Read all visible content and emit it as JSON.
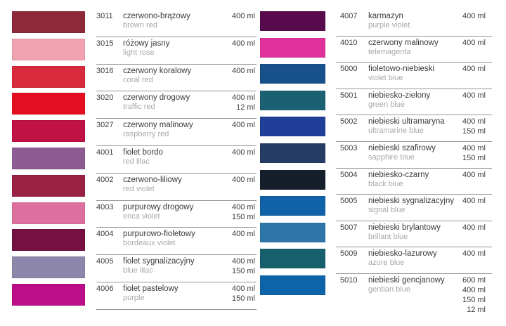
{
  "page": {
    "background": "#ffffff",
    "separator_color": "#949494",
    "code_color": "#3d3d3d",
    "name_pl_color": "#3a3a3a",
    "name_en_color": "#a9a9a9",
    "volume_color": "#3d3d3d"
  },
  "catalog": {
    "columns": [
      {
        "side": "left",
        "rows": [
          {
            "code": "3011",
            "name_pl": "czerwono-brązowy",
            "name_en": "brown red",
            "volumes": [
              "400 ml"
            ],
            "swatch": "#8e2939"
          },
          {
            "code": "3015",
            "name_pl": "różowy jasny",
            "name_en": "light rose",
            "volumes": [
              "400 ml"
            ],
            "swatch": "#f0a2b1"
          },
          {
            "code": "3016",
            "name_pl": "czerwony koralowy",
            "name_en": "coral red",
            "volumes": [
              "400 ml"
            ],
            "swatch": "#d82a3c"
          },
          {
            "code": "3020",
            "name_pl": "czerwony drogowy",
            "name_en": "traffic red",
            "volumes": [
              "400 ml",
              "12 ml"
            ],
            "swatch": "#e30e20"
          },
          {
            "code": "3027",
            "name_pl": "czerwony malinowy",
            "name_en": "raspberry red",
            "volumes": [
              "400 ml"
            ],
            "swatch": "#c01244"
          },
          {
            "code": "4001",
            "name_pl": "fiolet bordo",
            "name_en": "red lilac",
            "volumes": [
              "400 ml"
            ],
            "swatch": "#8d5c93"
          },
          {
            "code": "4002",
            "name_pl": "czerwono-liliowy",
            "name_en": "red violet",
            "volumes": [
              "400 ml"
            ],
            "swatch": "#9b2144"
          },
          {
            "code": "4003",
            "name_pl": "purpurowy drogowy",
            "name_en": "erica violet",
            "volumes": [
              "400 ml",
              "150 ml"
            ],
            "swatch": "#dc6f9d"
          },
          {
            "code": "4004",
            "name_pl": "purpurowo-fioletowy",
            "name_en": "bordeaux violet",
            "volumes": [
              "400 ml"
            ],
            "swatch": "#751040"
          },
          {
            "code": "4005",
            "name_pl": "fiolet sygnalizacyjny",
            "name_en": "blue lilac",
            "volumes": [
              "400 ml",
              "150 ml"
            ],
            "swatch": "#8e87ac"
          },
          {
            "code": "4006",
            "name_pl": "fiolet pastelowy",
            "name_en": "purple",
            "volumes": [
              "400 ml",
              "150 ml"
            ],
            "swatch": "#bb0e88"
          }
        ]
      },
      {
        "side": "right",
        "rows": [
          {
            "code": "4007",
            "name_pl": "karmazyn",
            "name_en": "purple violet",
            "volumes": [
              "400 ml"
            ],
            "swatch": "#570b4d"
          },
          {
            "code": "4010",
            "name_pl": "czerwony malinowy",
            "name_en": "telemagenta",
            "volumes": [
              "400 ml"
            ],
            "swatch": "#e0329c"
          },
          {
            "code": "5000",
            "name_pl": "fioletowo-niebieski",
            "name_en": "violet blue",
            "volumes": [
              "400 ml"
            ],
            "swatch": "#17508a"
          },
          {
            "code": "5001",
            "name_pl": "niebiesko-zielony",
            "name_en": "green blue",
            "volumes": [
              "400 ml"
            ],
            "swatch": "#1c6173"
          },
          {
            "code": "5002",
            "name_pl": "niebieski ultramaryna",
            "name_en": "ultramarine blue",
            "volumes": [
              "400 ml",
              "150 ml"
            ],
            "swatch": "#1f3f99"
          },
          {
            "code": "5003",
            "name_pl": "niebieski szafirowy",
            "name_en": "sapphire blue",
            "volumes": [
              "400 ml",
              "150 ml"
            ],
            "swatch": "#253c64"
          },
          {
            "code": "5004",
            "name_pl": "niebiesko-czarny",
            "name_en": "black blue",
            "volumes": [
              "400 ml"
            ],
            "swatch": "#141f2b"
          },
          {
            "code": "5005",
            "name_pl": "niebieski sygnalizacyjny",
            "name_en": "signal blue",
            "volumes": [
              "400 ml"
            ],
            "swatch": "#0f62a8"
          },
          {
            "code": "5007",
            "name_pl": "niebieski brylantowy",
            "name_en": "brillant blue",
            "volumes": [
              "400 ml"
            ],
            "swatch": "#2e76a8"
          },
          {
            "code": "5009",
            "name_pl": "niebiesko-lazurowy",
            "name_en": "azure blue",
            "volumes": [
              "400 ml"
            ],
            "swatch": "#16606e"
          },
          {
            "code": "5010",
            "name_pl": "niebieski gencjanowy",
            "name_en": "gentian blue",
            "volumes": [
              "600 ml",
              "400 ml",
              "150 ml",
              "12 ml"
            ],
            "swatch": "#0e64a8"
          }
        ]
      }
    ]
  }
}
